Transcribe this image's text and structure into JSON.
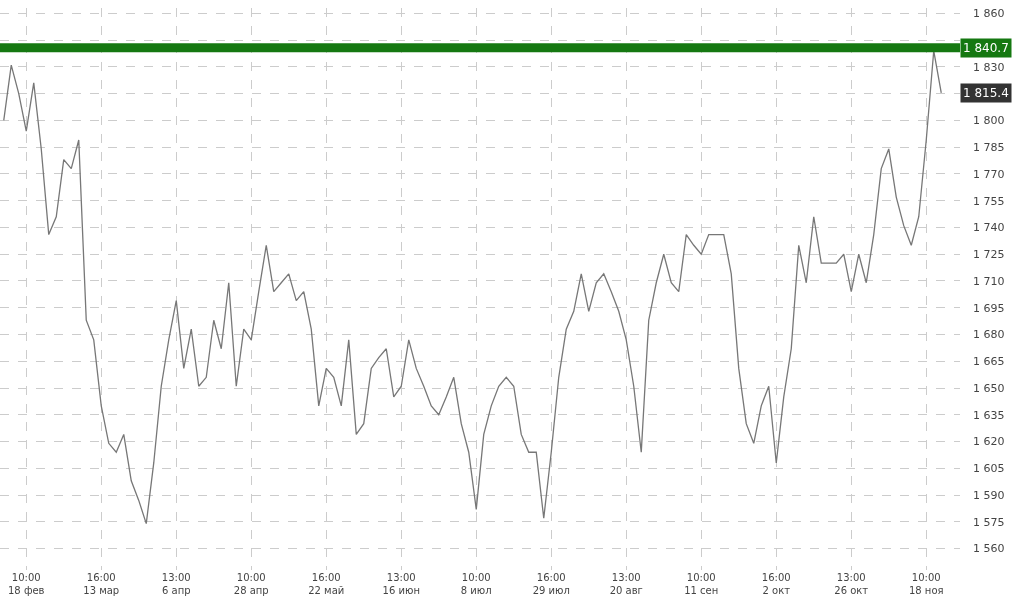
{
  "chart_data": {
    "type": "line",
    "grid": true,
    "line_style": "solid",
    "marker": "none",
    "categories": [
      null,
      null,
      null,
      "10:00\n18 фев",
      null,
      null,
      null,
      null,
      null,
      null,
      null,
      null,
      null,
      "16:00\n13 мар",
      null,
      null,
      null,
      null,
      null,
      null,
      null,
      null,
      null,
      "13:00\n6 апр",
      null,
      null,
      null,
      null,
      null,
      null,
      null,
      null,
      null,
      "10:00\n28 апр",
      null,
      null,
      null,
      null,
      null,
      null,
      null,
      null,
      null,
      "16:00\n22 май",
      null,
      null,
      null,
      null,
      null,
      null,
      null,
      null,
      null,
      "13:00\n16 июн",
      null,
      null,
      null,
      null,
      null,
      null,
      null,
      null,
      null,
      "10:00\n8 июл",
      null,
      null,
      null,
      null,
      null,
      null,
      null,
      null,
      null,
      "16:00\n29 июл",
      null,
      null,
      null,
      null,
      null,
      null,
      null,
      null,
      null,
      "13:00\n20 авг",
      null,
      null,
      null,
      null,
      null,
      null,
      null,
      null,
      null,
      "10:00\n11 сен",
      null,
      null,
      null,
      null,
      null,
      null,
      null,
      null,
      null,
      "16:00\n2 окт",
      null,
      null,
      null,
      null,
      null,
      null,
      null,
      null,
      null,
      "13:00\n26 окт",
      null,
      null,
      null,
      null,
      null,
      null,
      null,
      null,
      null,
      "10:00\n18 ноя",
      null,
      null
    ],
    "series": [
      {
        "color": "#777777",
        "values": [
          1800,
          1831,
          1815,
          1794,
          1821,
          1784,
          1736,
          1746,
          1778,
          1773,
          1789,
          1688,
          1677,
          1640,
          1619,
          1614,
          1624,
          1598,
          1587,
          1574,
          1608,
          1651,
          1677,
          1699,
          1661,
          1683,
          1651,
          1656,
          1688,
          1672,
          1709,
          1651,
          1683,
          1677,
          1704,
          1730,
          1704,
          1709,
          1714,
          1699,
          1704,
          1683,
          1640,
          1661,
          1656,
          1640,
          1677,
          1624,
          1630,
          1661,
          1667,
          1672,
          1645,
          1651,
          1677,
          1661,
          1651,
          1640,
          1635,
          1645,
          1656,
          1630,
          1614,
          1582,
          1624,
          1640,
          1651,
          1656,
          1651,
          1624,
          1614,
          1614,
          1577,
          1614,
          1656,
          1683,
          1693,
          1714,
          1693,
          1709,
          1714,
          1704,
          1693,
          1677,
          1651,
          1614,
          1688,
          1709,
          1725,
          1709,
          1704,
          1736,
          1730,
          1725,
          1736,
          1736,
          1736,
          1714,
          1661,
          1630,
          1619,
          1640,
          1651,
          1608,
          1645,
          1672,
          1730,
          1709,
          1746,
          1720,
          1720,
          1720,
          1725,
          1704,
          1725,
          1709,
          1736,
          1773,
          1784,
          1757,
          1741,
          1730,
          1746,
          1789,
          1839,
          1815.4
        ]
      }
    ],
    "ylim": [
      1548,
      1863
    ],
    "yticks": [
      {
        "value": 1560,
        "label": "1 560"
      },
      {
        "value": 1575,
        "label": "1 575"
      },
      {
        "value": 1590,
        "label": "1 590"
      },
      {
        "value": 1605,
        "label": "1 605"
      },
      {
        "value": 1620,
        "label": "1 620"
      },
      {
        "value": 1635,
        "label": "1 635"
      },
      {
        "value": 1650,
        "label": "1 650"
      },
      {
        "value": 1665,
        "label": "1 665"
      },
      {
        "value": 1680,
        "label": "1 680"
      },
      {
        "value": 1695,
        "label": "1 695"
      },
      {
        "value": 1710,
        "label": "1 710"
      },
      {
        "value": 1725,
        "label": "1 725"
      },
      {
        "value": 1740,
        "label": "1 740"
      },
      {
        "value": 1755,
        "label": "1 755"
      },
      {
        "value": 1770,
        "label": "1 770"
      },
      {
        "value": 1785,
        "label": "1 785"
      },
      {
        "value": 1800,
        "label": "1 800"
      },
      {
        "value": 1815,
        "label": null
      },
      {
        "value": 1830,
        "label": "1 830"
      },
      {
        "value": 1845,
        "label": null
      },
      {
        "value": 1860,
        "label": "1 860"
      }
    ],
    "ref_lines": [
      {
        "axis": "y",
        "value": 1840.7,
        "label": "1 840.7",
        "color": "#157811"
      }
    ],
    "annotations": [
      "1 815.4"
    ]
  }
}
